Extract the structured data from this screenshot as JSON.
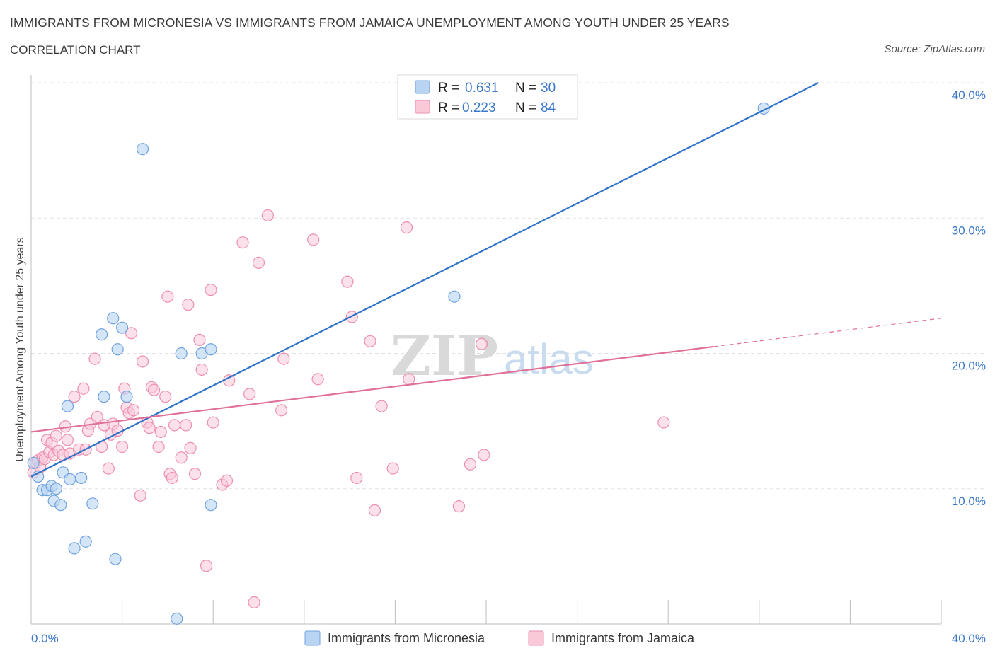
{
  "header": {
    "title": "IMMIGRANTS FROM MICRONESIA VS IMMIGRANTS FROM JAMAICA UNEMPLOYMENT AMONG YOUTH UNDER 25 YEARS",
    "subtitle": "CORRELATION CHART",
    "source": "Source: ZipAtlas.com"
  },
  "watermark": {
    "zip": "ZIP",
    "atlas": "atlas"
  },
  "legend": {
    "rows": [
      {
        "r_label": "R =",
        "r_value": "0.631",
        "n_label": "N =",
        "n_value": "30"
      },
      {
        "r_label": "R =",
        "r_value": "0.223",
        "n_label": "N =",
        "n_value": "84"
      }
    ]
  },
  "chart_data": {
    "type": "scatter",
    "title": "IMMIGRANTS FROM MICRONESIA VS IMMIGRANTS FROM JAMAICA UNEMPLOYMENT AMONG YOUTH UNDER 25 YEARS",
    "xlabel": "",
    "ylabel": "Unemployment Among Youth under 25 years",
    "xlim": [
      0,
      40
    ],
    "ylim": [
      0,
      40
    ],
    "x_tick_labels": [
      "0.0%",
      "40.0%"
    ],
    "y_ticks": [
      10,
      20,
      30,
      40
    ],
    "y_tick_labels": [
      "10.0%",
      "20.0%",
      "30.0%",
      "40.0%"
    ],
    "grid": true,
    "colors": {
      "micronesia": "#6fa3e0",
      "micronesia_fill": "#b9d3f3",
      "jamaica": "#ee8fae",
      "jamaica_fill": "#f9c9d8",
      "trend_blue": "#2f72c9",
      "trend_pink": "#e0709a",
      "tick_blue": "#3b78c9"
    },
    "series": [
      {
        "name": "Immigrants from Micronesia",
        "R": 0.631,
        "N": 30,
        "trend": {
          "x0": 0,
          "y0": 10.9,
          "x1": 34.6,
          "y1": 40.0
        },
        "points": [
          [
            0.1,
            11.9
          ],
          [
            0.3,
            10.9
          ],
          [
            0.5,
            9.9
          ],
          [
            0.7,
            9.9
          ],
          [
            0.9,
            10.2
          ],
          [
            1.0,
            9.1
          ],
          [
            1.1,
            10.0
          ],
          [
            1.3,
            8.8
          ],
          [
            1.4,
            11.2
          ],
          [
            1.6,
            16.1
          ],
          [
            1.7,
            10.7
          ],
          [
            1.9,
            5.6
          ],
          [
            2.2,
            10.8
          ],
          [
            2.4,
            6.1
          ],
          [
            2.7,
            8.9
          ],
          [
            3.1,
            21.4
          ],
          [
            3.2,
            16.8
          ],
          [
            3.6,
            22.6
          ],
          [
            3.7,
            4.8
          ],
          [
            3.8,
            20.3
          ],
          [
            4.0,
            21.9
          ],
          [
            4.2,
            16.8
          ],
          [
            4.9,
            35.1
          ],
          [
            6.4,
            0.4
          ],
          [
            6.6,
            20.0
          ],
          [
            7.5,
            20.0
          ],
          [
            7.9,
            20.3
          ],
          [
            7.9,
            8.8
          ],
          [
            18.6,
            24.2
          ],
          [
            32.2,
            38.1
          ]
        ]
      },
      {
        "name": "Immigrants from Jamaica",
        "R": 0.223,
        "N": 84,
        "trend": {
          "x0": 0,
          "y0": 14.2,
          "x1": 30.0,
          "y1": 20.5
        },
        "trend_dashed": {
          "x0": 30.0,
          "y0": 20.5,
          "x1": 40.0,
          "y1": 22.6
        },
        "points": [
          [
            0.1,
            11.2
          ],
          [
            0.2,
            11.9
          ],
          [
            0.3,
            12.1
          ],
          [
            0.4,
            11.6
          ],
          [
            0.5,
            12.3
          ],
          [
            0.6,
            12.2
          ],
          [
            0.7,
            13.6
          ],
          [
            0.8,
            12.7
          ],
          [
            0.9,
            13.4
          ],
          [
            1.0,
            12.5
          ],
          [
            1.1,
            13.9
          ],
          [
            1.2,
            12.8
          ],
          [
            1.4,
            12.5
          ],
          [
            1.5,
            14.6
          ],
          [
            1.6,
            13.6
          ],
          [
            1.7,
            12.6
          ],
          [
            1.9,
            16.8
          ],
          [
            2.1,
            12.9
          ],
          [
            2.3,
            17.4
          ],
          [
            2.4,
            12.9
          ],
          [
            2.5,
            14.3
          ],
          [
            2.6,
            14.8
          ],
          [
            2.8,
            19.6
          ],
          [
            2.9,
            15.3
          ],
          [
            3.1,
            13.1
          ],
          [
            3.2,
            14.7
          ],
          [
            3.4,
            11.5
          ],
          [
            3.5,
            14.0
          ],
          [
            3.6,
            14.8
          ],
          [
            3.8,
            14.3
          ],
          [
            4.0,
            13.1
          ],
          [
            4.1,
            17.4
          ],
          [
            4.2,
            16.0
          ],
          [
            4.3,
            15.6
          ],
          [
            4.4,
            21.5
          ],
          [
            4.5,
            15.8
          ],
          [
            4.8,
            9.5
          ],
          [
            4.9,
            19.4
          ],
          [
            5.1,
            14.9
          ],
          [
            5.2,
            14.5
          ],
          [
            5.3,
            17.5
          ],
          [
            5.4,
            17.3
          ],
          [
            5.6,
            13.1
          ],
          [
            5.7,
            14.2
          ],
          [
            5.9,
            16.8
          ],
          [
            6.0,
            24.2
          ],
          [
            6.1,
            11.1
          ],
          [
            6.2,
            10.8
          ],
          [
            6.3,
            14.7
          ],
          [
            6.6,
            12.3
          ],
          [
            6.8,
            14.7
          ],
          [
            6.9,
            23.6
          ],
          [
            7.0,
            13.0
          ],
          [
            7.2,
            11.1
          ],
          [
            7.4,
            21.0
          ],
          [
            7.5,
            18.8
          ],
          [
            7.7,
            4.3
          ],
          [
            7.9,
            24.7
          ],
          [
            8.0,
            14.9
          ],
          [
            8.4,
            10.3
          ],
          [
            8.6,
            10.6
          ],
          [
            8.7,
            18.0
          ],
          [
            9.3,
            28.2
          ],
          [
            9.6,
            17.0
          ],
          [
            9.8,
            1.6
          ],
          [
            10.0,
            26.7
          ],
          [
            10.4,
            30.2
          ],
          [
            11.0,
            15.8
          ],
          [
            11.1,
            19.6
          ],
          [
            12.4,
            28.4
          ],
          [
            12.6,
            18.1
          ],
          [
            13.9,
            25.3
          ],
          [
            14.1,
            22.7
          ],
          [
            14.3,
            10.8
          ],
          [
            14.9,
            20.9
          ],
          [
            15.1,
            8.4
          ],
          [
            15.4,
            16.1
          ],
          [
            15.9,
            11.5
          ],
          [
            16.5,
            29.3
          ],
          [
            16.6,
            18.1
          ],
          [
            18.8,
            8.7
          ],
          [
            19.3,
            11.8
          ],
          [
            19.8,
            20.7
          ],
          [
            19.9,
            12.5
          ],
          [
            27.8,
            14.9
          ]
        ]
      }
    ]
  },
  "bottom_legend": [
    {
      "label": "Immigrants from Micronesia"
    },
    {
      "label": "Immigrants from Jamaica"
    }
  ]
}
